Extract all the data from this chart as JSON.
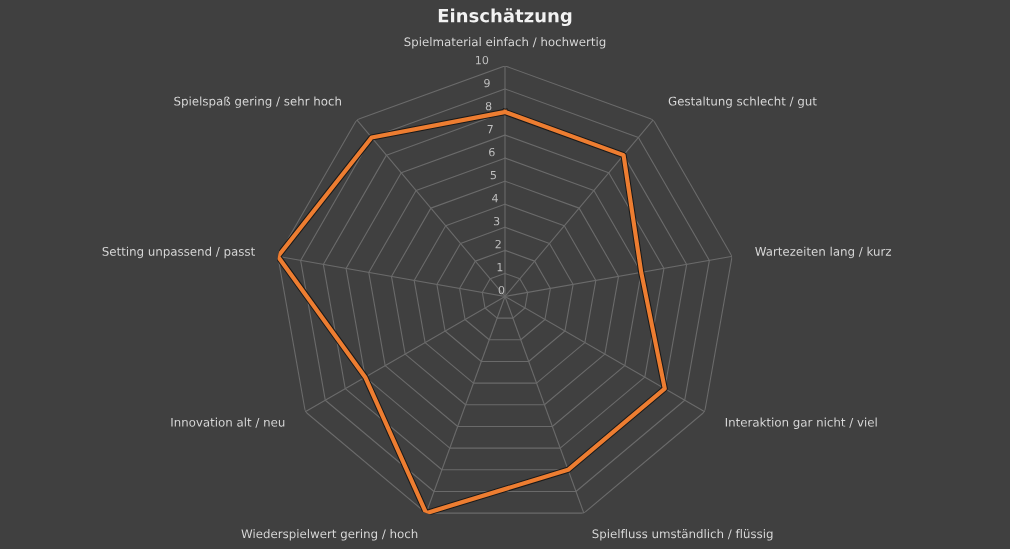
{
  "chart_data": {
    "type": "radar",
    "title": "Einschätzung",
    "categories": [
      "Spielmaterial einfach / hochwertig",
      "Gestaltung schlecht / gut",
      "Wartezeiten lang / kurz",
      "Interaktion gar nicht / viel",
      "Spielfluss umständlich / flüssig",
      "Wiederspielwert gering / hoch",
      "Innovation alt / neu",
      "Setting unpassend / passt",
      "Spielspaß gering / sehr hoch"
    ],
    "series": [
      {
        "color": "#ed7d31",
        "values": [
          8,
          8,
          6,
          8,
          8,
          10,
          7,
          10,
          9
        ]
      }
    ],
    "ylim": [
      0,
      10
    ],
    "yticks": [
      0,
      1,
      2,
      3,
      4,
      5,
      6,
      7,
      8,
      9,
      10
    ],
    "grid": true,
    "legend": false
  }
}
